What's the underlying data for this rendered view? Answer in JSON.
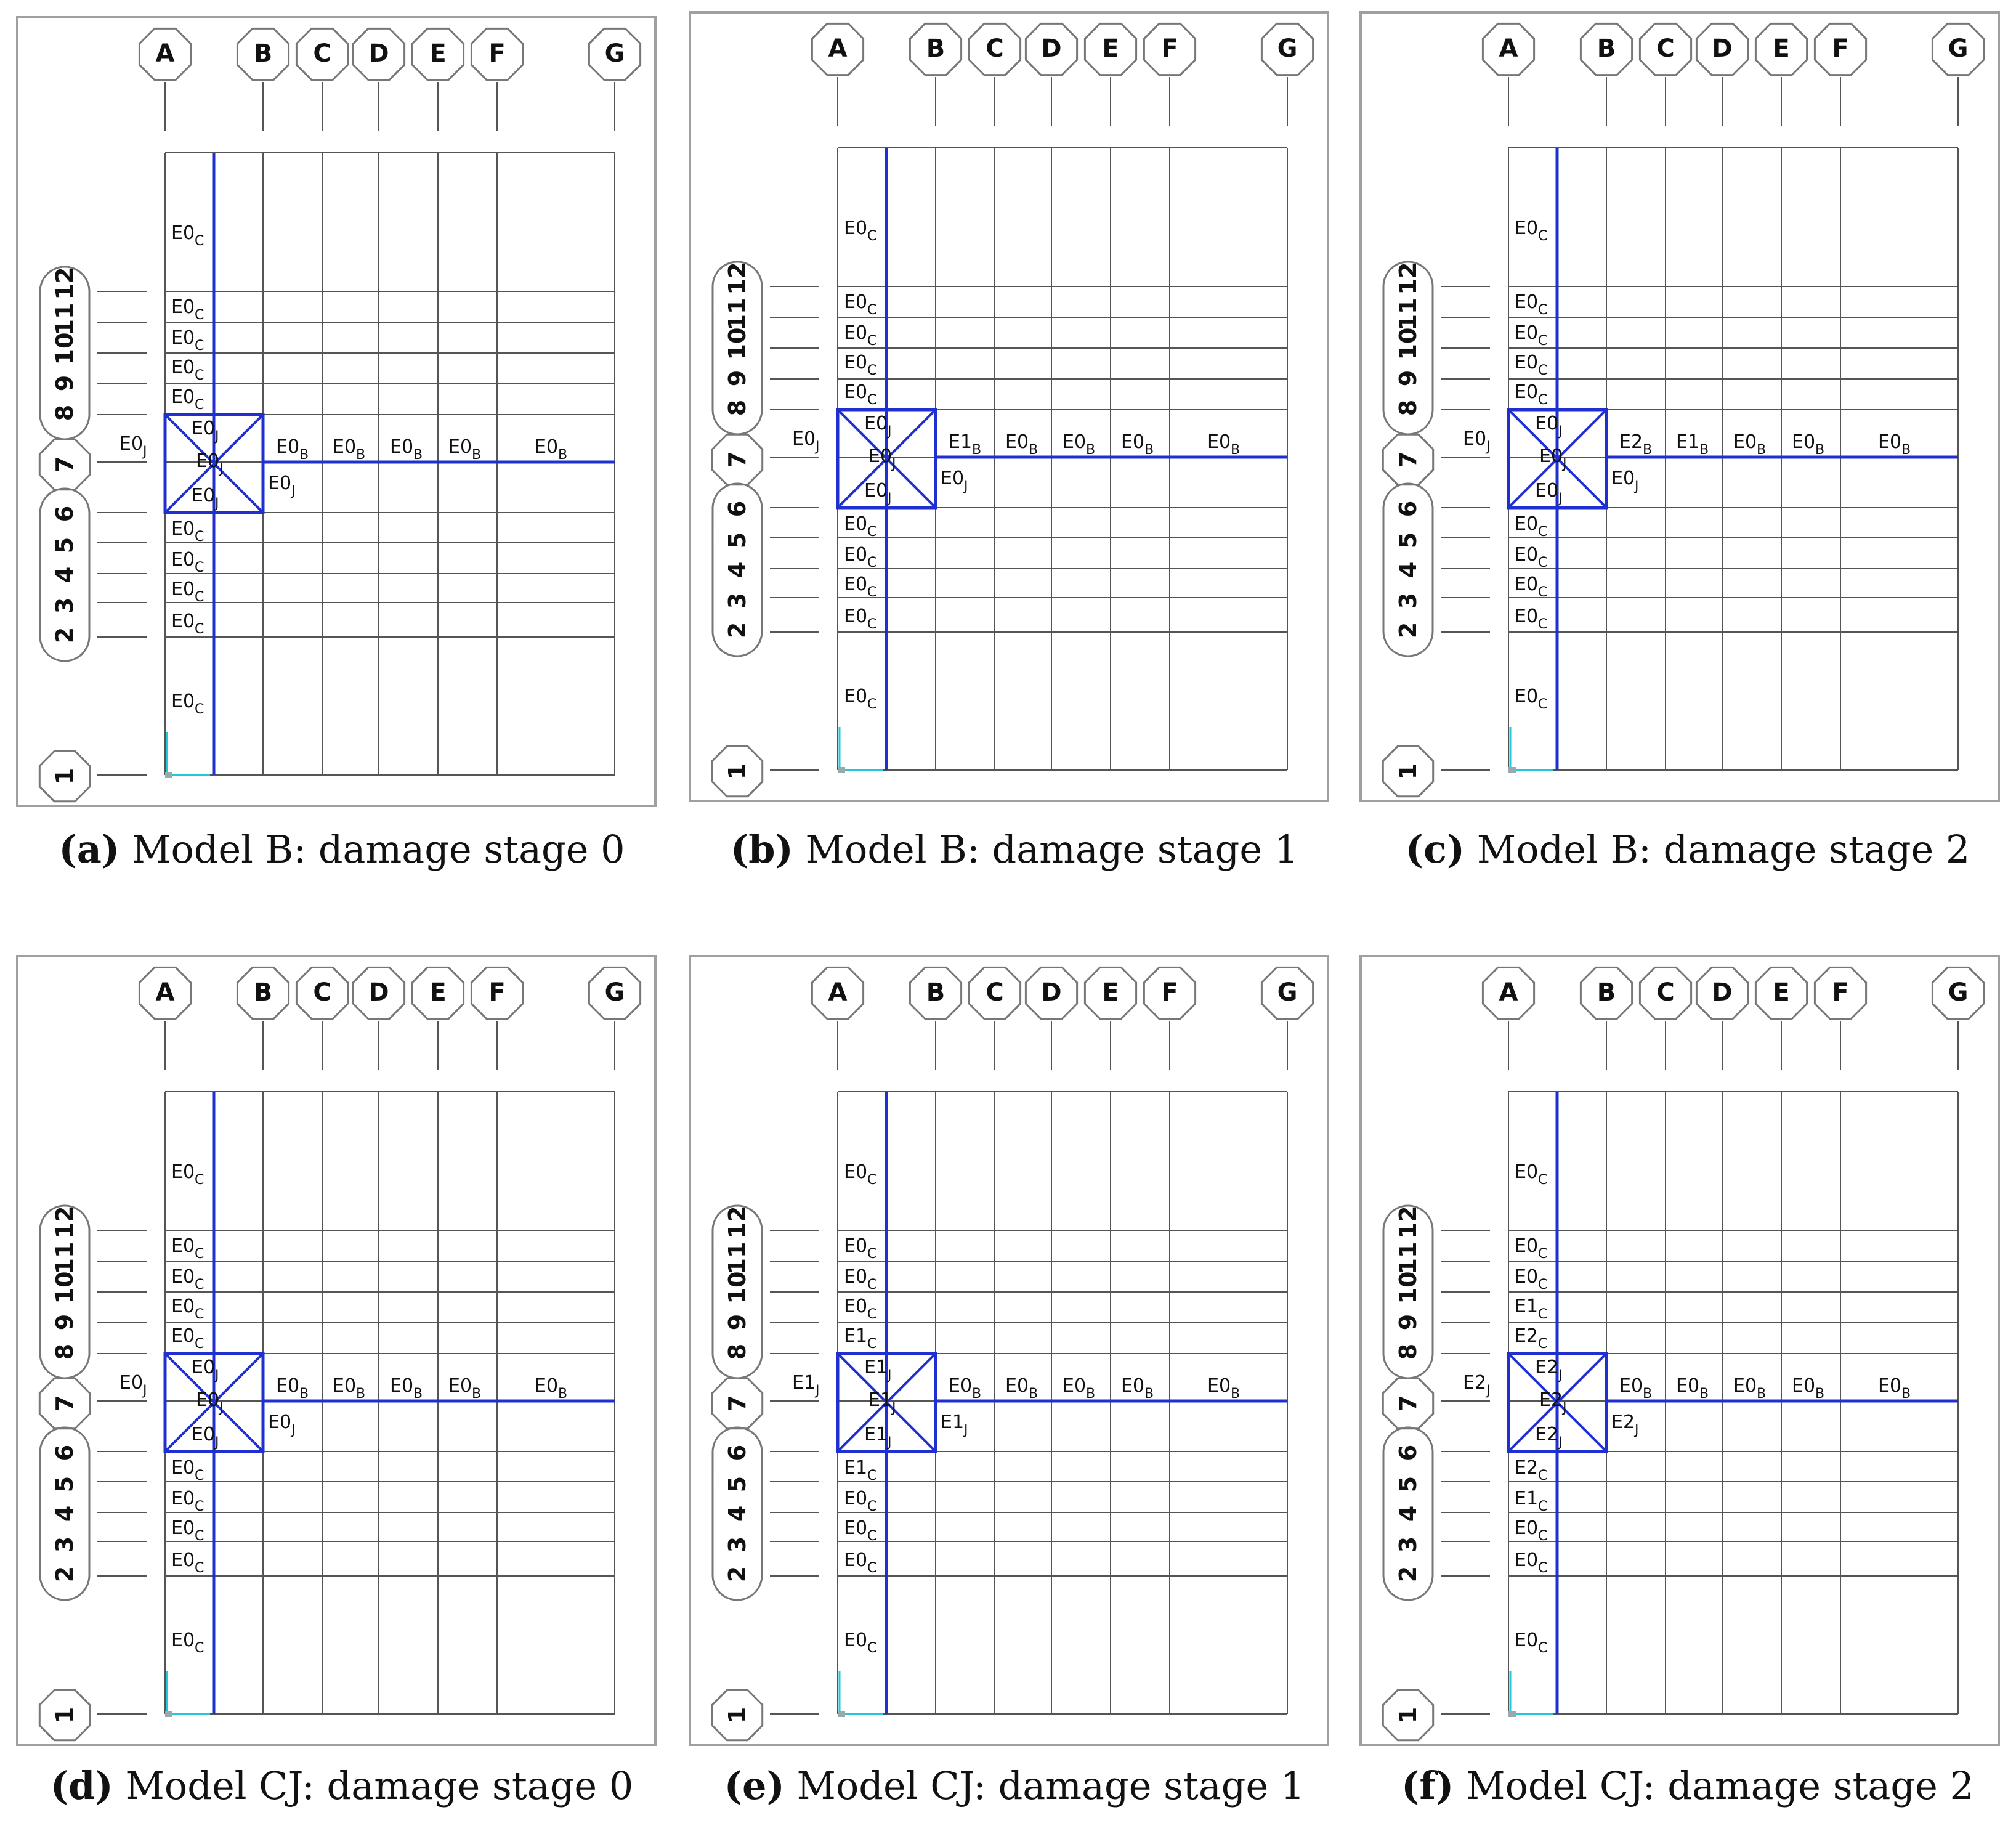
{
  "grid": {
    "col_labels": [
      "A",
      "B",
      "C",
      "D",
      "E",
      "F",
      "G"
    ],
    "row_labels": [
      "1",
      "2",
      "3",
      "4",
      "5",
      "6",
      "7",
      "8",
      "9",
      "10",
      "11",
      "12"
    ]
  },
  "colors": {
    "grid_line": "#555555",
    "highlight": "#1f2fd0",
    "frame": "#a0a0a0",
    "axis": "#22c7d8",
    "text": "#111111"
  },
  "panels": [
    {
      "id": "a",
      "caption": {
        "letter": "(a)",
        "text": "Model B: damage stage 0"
      },
      "labels": {
        "column_above": "E0_C",
        "column_9_10": "E0_C",
        "column_10_11": "E0_C",
        "column_11_12": "E0_C",
        "column_12_13": "E0_C",
        "joint_top": "E0_J",
        "joint_center": "E0_J",
        "joint_bottom": "E0_J",
        "joint_left": "E0_J",
        "joint_right": "E0_J",
        "column_below_1": "E0_C",
        "column_below_2": "E0_C",
        "column_below_3": "E0_C",
        "column_below_4": "E0_C",
        "column_bottom": "E0_C",
        "beams": [
          "E0_B",
          "E0_B",
          "E0_B",
          "E0_B",
          "E0_B"
        ]
      }
    },
    {
      "id": "b",
      "caption": {
        "letter": "(b)",
        "text": "Model B: damage stage 1"
      },
      "labels": {
        "column_above": "E0_C",
        "column_9_10": "E0_C",
        "column_10_11": "E0_C",
        "column_11_12": "E0_C",
        "column_12_13": "E0_C",
        "joint_top": "E0_J",
        "joint_center": "E0_J",
        "joint_bottom": "E0_J",
        "joint_left": "E0_J",
        "joint_right": "E0_J",
        "column_below_1": "E0_C",
        "column_below_2": "E0_C",
        "column_below_3": "E0_C",
        "column_below_4": "E0_C",
        "column_bottom": "E0_C",
        "beams": [
          "E1_B",
          "E0_B",
          "E0_B",
          "E0_B",
          "E0_B"
        ]
      }
    },
    {
      "id": "c",
      "caption": {
        "letter": "(c)",
        "text": "Model B: damage stage 2"
      },
      "labels": {
        "column_above": "E0_C",
        "column_9_10": "E0_C",
        "column_10_11": "E0_C",
        "column_11_12": "E0_C",
        "column_12_13": "E0_C",
        "joint_top": "E0_J",
        "joint_center": "E0_J",
        "joint_bottom": "E0_J",
        "joint_left": "E0_J",
        "joint_right": "E0_J",
        "column_below_1": "E0_C",
        "column_below_2": "E0_C",
        "column_below_3": "E0_C",
        "column_below_4": "E0_C",
        "column_bottom": "E0_C",
        "beams": [
          "E2_B",
          "E1_B",
          "E0_B",
          "E0_B",
          "E0_B"
        ]
      }
    },
    {
      "id": "d",
      "caption": {
        "letter": "(d)",
        "text": "Model CJ: damage stage 0"
      },
      "labels": {
        "column_above": "E0_C",
        "column_9_10": "E0_C",
        "column_10_11": "E0_C",
        "column_11_12": "E0_C",
        "column_12_13": "E0_C",
        "joint_top": "E0_J",
        "joint_center": "E0_J",
        "joint_bottom": "E0_J",
        "joint_left": "E0_J",
        "joint_right": "E0_J",
        "column_below_1": "E0_C",
        "column_below_2": "E0_C",
        "column_below_3": "E0_C",
        "column_below_4": "E0_C",
        "column_bottom": "E0_C",
        "beams": [
          "E0_B",
          "E0_B",
          "E0_B",
          "E0_B",
          "E0_B"
        ]
      }
    },
    {
      "id": "e",
      "caption": {
        "letter": "(e)",
        "text": "Model CJ: damage stage 1"
      },
      "labels": {
        "column_above": "E0_C",
        "column_9_10": "E0_C",
        "column_10_11": "E0_C",
        "column_11_12": "E0_C",
        "column_12_13": "E1_C",
        "joint_top": "E1_J",
        "joint_center": "E1_J",
        "joint_bottom": "E1_J",
        "joint_left": "E1_J",
        "joint_right": "E1_J",
        "column_below_1": "E1_C",
        "column_below_2": "E0_C",
        "column_below_3": "E0_C",
        "column_below_4": "E0_C",
        "column_bottom": "E0_C",
        "beams": [
          "E0_B",
          "E0_B",
          "E0_B",
          "E0_B",
          "E0_B"
        ]
      }
    },
    {
      "id": "f",
      "caption": {
        "letter": "(f)",
        "text": "Model CJ: damage stage 2"
      },
      "labels": {
        "column_above": "E0_C",
        "column_9_10": "E0_C",
        "column_10_11": "E0_C",
        "column_11_12": "E1_C",
        "column_12_13": "E2_C",
        "joint_top": "E2_J",
        "joint_center": "E2_J",
        "joint_bottom": "E2_J",
        "joint_left": "E2_J",
        "joint_right": "E2_J",
        "column_below_1": "E2_C",
        "column_below_2": "E1_C",
        "column_below_3": "E0_C",
        "column_below_4": "E0_C",
        "column_bottom": "E0_C",
        "beams": [
          "E0_B",
          "E0_B",
          "E0_B",
          "E0_B",
          "E0_B"
        ]
      }
    }
  ]
}
